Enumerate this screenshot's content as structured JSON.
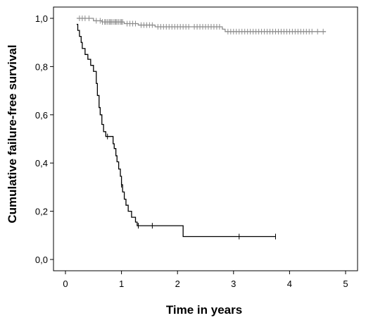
{
  "chart_data": {
    "type": "line",
    "subtype": "kaplan-meier-step",
    "title": "",
    "xlabel": "Time in years",
    "ylabel": "Cumulative failure-free survival",
    "xlim": [
      0,
      5
    ],
    "ylim": [
      0,
      1.0
    ],
    "x_ticks": [
      0,
      1,
      2,
      3,
      4,
      5
    ],
    "y_ticks": [
      0.0,
      0.2,
      0.4,
      0.6,
      0.8,
      1.0
    ],
    "x_tick_labels": [
      "0",
      "1",
      "2",
      "3",
      "4",
      "5"
    ],
    "y_tick_labels": [
      "0,0",
      "0,2",
      "0,4",
      "0,6",
      "0,8",
      "1,0"
    ],
    "grid": false,
    "legend": "none",
    "series": [
      {
        "color": "#8c8c8c",
        "steps": [
          [
            0.2,
            1.0
          ],
          [
            0.5,
            0.99
          ],
          [
            0.65,
            0.985
          ],
          [
            1.05,
            0.978
          ],
          [
            1.3,
            0.972
          ],
          [
            1.6,
            0.965
          ],
          [
            2.8,
            0.955
          ],
          [
            2.85,
            0.945
          ],
          [
            4.65,
            0.945
          ]
        ],
        "censored": [
          0.25,
          0.3,
          0.35,
          0.42,
          0.55,
          0.62,
          0.66,
          0.7,
          0.72,
          0.75,
          0.78,
          0.8,
          0.82,
          0.85,
          0.88,
          0.9,
          0.92,
          0.95,
          0.98,
          1.0,
          1.02,
          1.1,
          1.15,
          1.2,
          1.25,
          1.35,
          1.4,
          1.45,
          1.5,
          1.55,
          1.65,
          1.7,
          1.75,
          1.8,
          1.85,
          1.9,
          1.95,
          2.0,
          2.05,
          2.1,
          2.15,
          2.2,
          2.3,
          2.35,
          2.4,
          2.45,
          2.5,
          2.55,
          2.6,
          2.65,
          2.7,
          2.75,
          2.9,
          2.95,
          3.0,
          3.05,
          3.1,
          3.15,
          3.2,
          3.25,
          3.3,
          3.35,
          3.4,
          3.45,
          3.5,
          3.55,
          3.6,
          3.65,
          3.7,
          3.75,
          3.8,
          3.85,
          3.9,
          3.95,
          4.0,
          4.05,
          4.1,
          4.15,
          4.2,
          4.25,
          4.3,
          4.35,
          4.4,
          4.5,
          4.6
        ]
      },
      {
        "color": "#000000",
        "steps": [
          [
            0.2,
            0.975
          ],
          [
            0.22,
            0.95
          ],
          [
            0.25,
            0.925
          ],
          [
            0.28,
            0.9
          ],
          [
            0.3,
            0.875
          ],
          [
            0.35,
            0.85
          ],
          [
            0.4,
            0.83
          ],
          [
            0.45,
            0.805
          ],
          [
            0.5,
            0.78
          ],
          [
            0.55,
            0.73
          ],
          [
            0.57,
            0.68
          ],
          [
            0.6,
            0.63
          ],
          [
            0.62,
            0.6
          ],
          [
            0.65,
            0.56
          ],
          [
            0.68,
            0.53
          ],
          [
            0.72,
            0.51
          ],
          [
            0.85,
            0.48
          ],
          [
            0.87,
            0.46
          ],
          [
            0.9,
            0.43
          ],
          [
            0.92,
            0.405
          ],
          [
            0.95,
            0.375
          ],
          [
            0.98,
            0.345
          ],
          [
            1.0,
            0.31
          ],
          [
            1.02,
            0.28
          ],
          [
            1.05,
            0.25
          ],
          [
            1.08,
            0.225
          ],
          [
            1.12,
            0.2
          ],
          [
            1.18,
            0.175
          ],
          [
            1.25,
            0.155
          ],
          [
            1.28,
            0.14
          ],
          [
            2.1,
            0.095
          ],
          [
            3.75,
            0.095
          ]
        ],
        "censored": [
          0.75,
          1.0,
          1.3,
          1.55,
          3.1,
          3.75
        ]
      }
    ]
  }
}
